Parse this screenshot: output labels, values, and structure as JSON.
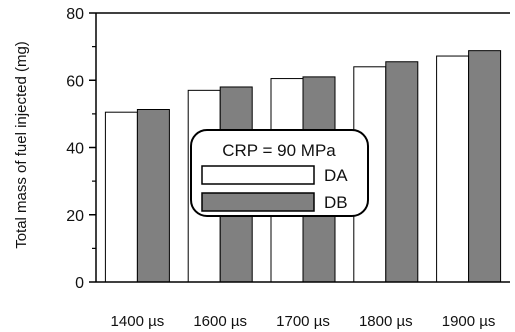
{
  "chart_data": {
    "type": "bar",
    "categories": [
      "1400 µs",
      "1600 µs",
      "1700 µs",
      "1800 µs",
      "1900 µs"
    ],
    "series": [
      {
        "name": "DA",
        "values": [
          50.5,
          57,
          60.5,
          64,
          67.2
        ],
        "color": "#ffffff"
      },
      {
        "name": "DB",
        "values": [
          51.3,
          58,
          61,
          65.5,
          68.8
        ],
        "color": "#808080"
      }
    ],
    "title": "",
    "xlabel": "",
    "ylabel": "Total mass of fuel injected (mg)",
    "ylim": [
      0,
      80
    ],
    "yticks": [
      0,
      20,
      40,
      60,
      80
    ],
    "grid": false,
    "legend": {
      "title": "CRP = 90 MPa",
      "placement": "center"
    }
  }
}
